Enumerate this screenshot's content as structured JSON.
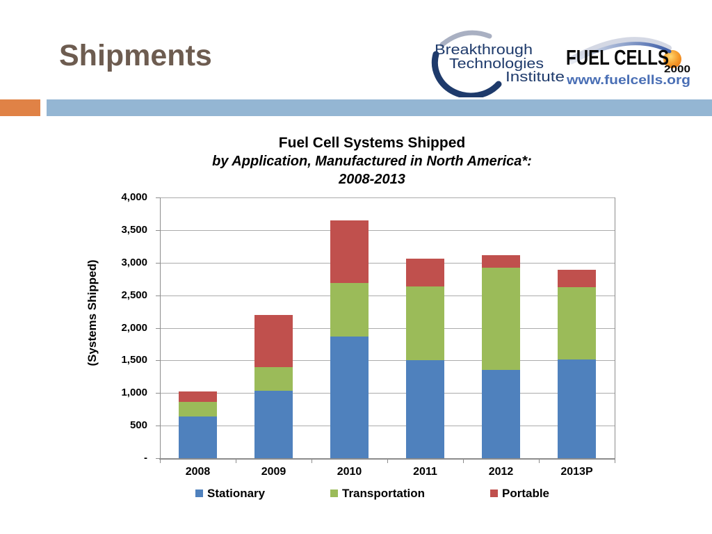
{
  "slide": {
    "title": "Shipments"
  },
  "logos": {
    "bti": {
      "line1": "Breakthrough",
      "line2": "Technologies",
      "line3": "Institute"
    },
    "fc2000": {
      "name": "FUEL CELLS",
      "year": "2000",
      "url": "www.fuelcells.org"
    }
  },
  "colors": {
    "accent_orange": "#E08246",
    "accent_blue": "#94B6D3",
    "title_brown": "#6D5C50",
    "navy": "#1E3A6B",
    "fc_text_blue": "#4A6FB5",
    "fc_ball_orange": "#F28B1E",
    "stationary_blue": "#4F81BD",
    "transportation_green": "#9BBB59",
    "portable_red": "#C0504D",
    "gridline_gray": "#ABABAB",
    "axis_gray": "#8C8C8C"
  },
  "chart_data": {
    "type": "bar",
    "stacked": true,
    "title": "Fuel Cell Systems Shipped",
    "subtitle1": "by Application, Manufactured in North America*:",
    "subtitle2": "2008-2013",
    "ylabel": "(Systems Shipped)",
    "xlabel": "",
    "categories": [
      "2008",
      "2009",
      "2010",
      "2011",
      "2012",
      "2013P"
    ],
    "series": [
      {
        "name": "Stationary",
        "color": "#4F81BD",
        "values": [
          640,
          1030,
          1870,
          1500,
          1350,
          1520
        ]
      },
      {
        "name": "Transportation",
        "color": "#9BBB59",
        "values": [
          220,
          370,
          820,
          1140,
          1570,
          1100
        ]
      },
      {
        "name": "Portable",
        "color": "#C0504D",
        "values": [
          160,
          800,
          960,
          420,
          190,
          270
        ]
      }
    ],
    "totals": [
      1020,
      2200,
      3650,
      3060,
      3110,
      2890
    ],
    "ylim": [
      0,
      4000
    ],
    "ytick_step": 500,
    "ytick_labels": [
      "-",
      "500",
      "1,000",
      "1,500",
      "2,000",
      "2,500",
      "3,000",
      "3,500",
      "4,000"
    ],
    "grid": true,
    "legend_position": "bottom"
  }
}
